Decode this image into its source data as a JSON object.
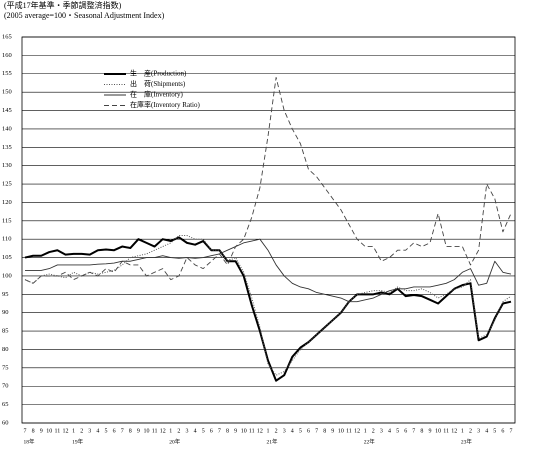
{
  "chart_data": {
    "type": "line",
    "title": "(平成17年基準・季節調整済指数)",
    "subtitle": "(2005 average=100・Seasonal Adjustment Index)",
    "categories": [
      "7",
      "8",
      "9",
      "10",
      "11",
      "12",
      "1",
      "2",
      "3",
      "4",
      "5",
      "6",
      "7",
      "8",
      "9",
      "10",
      "11",
      "12",
      "1",
      "2",
      "3",
      "4",
      "5",
      "6",
      "7",
      "8",
      "9",
      "10",
      "11",
      "12",
      "1",
      "2",
      "3",
      "4",
      "5",
      "6",
      "7",
      "8",
      "9",
      "10",
      "11",
      "12",
      "1",
      "2",
      "3",
      "4",
      "5",
      "6",
      "7",
      "8",
      "9",
      "10",
      "11",
      "12",
      "1",
      "2",
      "3",
      "4",
      "5",
      "6",
      "7"
    ],
    "year_groups": [
      {
        "label": "18年",
        "start": 0
      },
      {
        "label": "19年",
        "start": 6
      },
      {
        "label": "20年",
        "start": 18
      },
      {
        "label": "21年",
        "start": 30
      },
      {
        "label": "22年",
        "start": 42
      },
      {
        "label": "23年",
        "start": 54
      }
    ],
    "ylim": [
      60,
      165
    ],
    "yticks": [
      60,
      65,
      70,
      75,
      80,
      85,
      90,
      95,
      100,
      105,
      110,
      115,
      120,
      125,
      130,
      135,
      140,
      145,
      150,
      155,
      160,
      165
    ],
    "grid": true,
    "legend": "upper-left",
    "series": [
      {
        "name": "生　産(Production)",
        "color": "#000000",
        "style": "bold",
        "values": [
          105,
          105.5,
          105.5,
          106.5,
          107,
          105.8,
          106,
          106,
          105.8,
          107,
          107.2,
          107,
          108,
          107.6,
          110,
          109,
          108,
          110,
          109.5,
          110.5,
          109,
          108.5,
          109.5,
          107,
          107,
          104,
          104,
          100,
          92,
          85,
          77,
          71.5,
          73,
          78,
          80.5,
          82,
          84,
          86,
          88,
          90,
          93,
          95,
          95,
          95,
          95.5,
          95,
          96.5,
          94.5,
          94.8,
          94.5,
          93.5,
          92.5,
          94.5,
          96.5,
          97.5,
          98,
          82.5,
          83.5,
          88.5,
          92.5,
          93
        ]
      },
      {
        "name": "出　荷(Shipments)",
        "color": "#555555",
        "style": "dotted",
        "values": [
          99,
          98,
          100,
          100.5,
          100,
          99.5,
          101,
          100,
          101,
          100.5,
          101,
          101.5,
          103,
          105,
          105.5,
          106,
          107,
          108,
          109,
          111,
          111,
          110,
          110,
          107,
          107,
          104,
          105,
          101,
          94,
          86,
          76,
          73,
          74,
          77,
          80,
          82,
          84,
          86,
          88,
          90,
          93,
          95,
          95.5,
          96,
          96,
          95.5,
          97,
          96,
          96,
          96.5,
          95.5,
          94,
          95,
          96.5,
          97,
          99,
          83,
          84,
          88,
          93,
          94.5
        ]
      },
      {
        "name": "在　庫(Inventory)",
        "color": "#333333",
        "style": "solid",
        "values": [
          101.5,
          101.5,
          101.5,
          102,
          103,
          103,
          103,
          103,
          103,
          103.2,
          103.3,
          103.5,
          104,
          104,
          104.5,
          105,
          105,
          105.5,
          105,
          104.8,
          105,
          104.8,
          105,
          105.5,
          106,
          107,
          108,
          109,
          109.5,
          110,
          107,
          103,
          100,
          98,
          97,
          96.5,
          95.5,
          95,
          94.5,
          94,
          93,
          93,
          93.5,
          94,
          95,
          96,
          96.5,
          96.5,
          97,
          97,
          97,
          97.5,
          98,
          99,
          101,
          102,
          97.5,
          98,
          104,
          101,
          100.5
        ]
      },
      {
        "name": "在庫率(Inventory Ratio)",
        "color": "#444444",
        "style": "dashed",
        "values": [
          99,
          98,
          100,
          100,
          100,
          101,
          99,
          100,
          101,
          100,
          102,
          101,
          104,
          103,
          103,
          100,
          101,
          102,
          99,
          100,
          105,
          103,
          102,
          104,
          106,
          103,
          108,
          110,
          116,
          124,
          138,
          154,
          145,
          140,
          136,
          129,
          127,
          124,
          121,
          118,
          114,
          110,
          108,
          108,
          104,
          105,
          107,
          107,
          109,
          108,
          109,
          117,
          108,
          108,
          108,
          103,
          107,
          125,
          121,
          112,
          117
        ]
      }
    ]
  }
}
